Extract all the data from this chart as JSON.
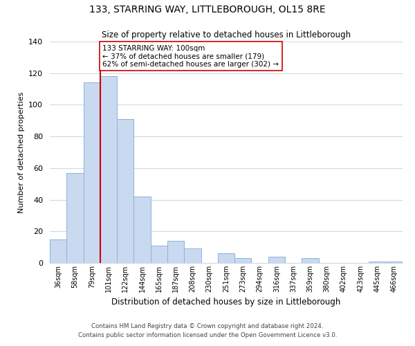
{
  "title": "133, STARRING WAY, LITTLEBOROUGH, OL15 8RE",
  "subtitle": "Size of property relative to detached houses in Littleborough",
  "xlabel": "Distribution of detached houses by size in Littleborough",
  "ylabel": "Number of detached properties",
  "bar_labels": [
    "36sqm",
    "58sqm",
    "79sqm",
    "101sqm",
    "122sqm",
    "144sqm",
    "165sqm",
    "187sqm",
    "208sqm",
    "230sqm",
    "251sqm",
    "273sqm",
    "294sqm",
    "316sqm",
    "337sqm",
    "359sqm",
    "380sqm",
    "402sqm",
    "423sqm",
    "445sqm",
    "466sqm"
  ],
  "bar_values": [
    15,
    57,
    114,
    118,
    91,
    42,
    11,
    14,
    9,
    0,
    6,
    3,
    0,
    4,
    0,
    3,
    0,
    0,
    0,
    1,
    1
  ],
  "bar_color": "#c9d9f0",
  "bar_edge_color": "#8cb3d9",
  "ylim": [
    0,
    140
  ],
  "yticks": [
    0,
    20,
    40,
    60,
    80,
    100,
    120,
    140
  ],
  "property_line_x": 3,
  "property_line_color": "#cc0000",
  "annotation_text": "133 STARRING WAY: 100sqm\n← 37% of detached houses are smaller (179)\n62% of semi-detached houses are larger (302) →",
  "annotation_box_color": "#ffffff",
  "annotation_box_edge_color": "#cc0000",
  "footer_line1": "Contains HM Land Registry data © Crown copyright and database right 2024.",
  "footer_line2": "Contains public sector information licensed under the Open Government Licence v3.0.",
  "background_color": "#ffffff",
  "grid_color": "#d0d8e8"
}
